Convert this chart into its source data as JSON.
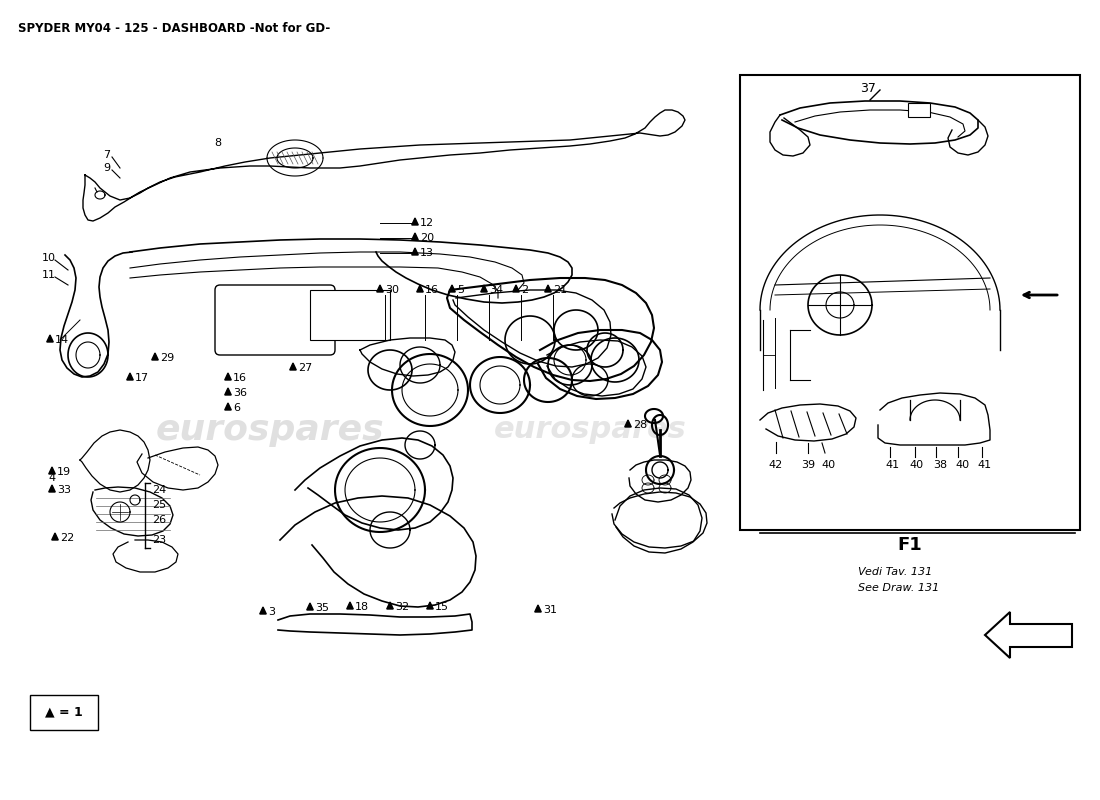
{
  "title": "SPYDER MY04 - 125 - DASHBOARD -Not for GD-",
  "title_fontsize": 8.5,
  "background_color": "#ffffff",
  "fig_width": 11.0,
  "fig_height": 8.0,
  "dpi": 100,
  "watermark_text": "eurospares",
  "ref_note_line1": "Vedi Tav. 131",
  "ref_note_line2": "See Draw. 131",
  "inset_label": "F1",
  "legend_text": "▲ = 1"
}
